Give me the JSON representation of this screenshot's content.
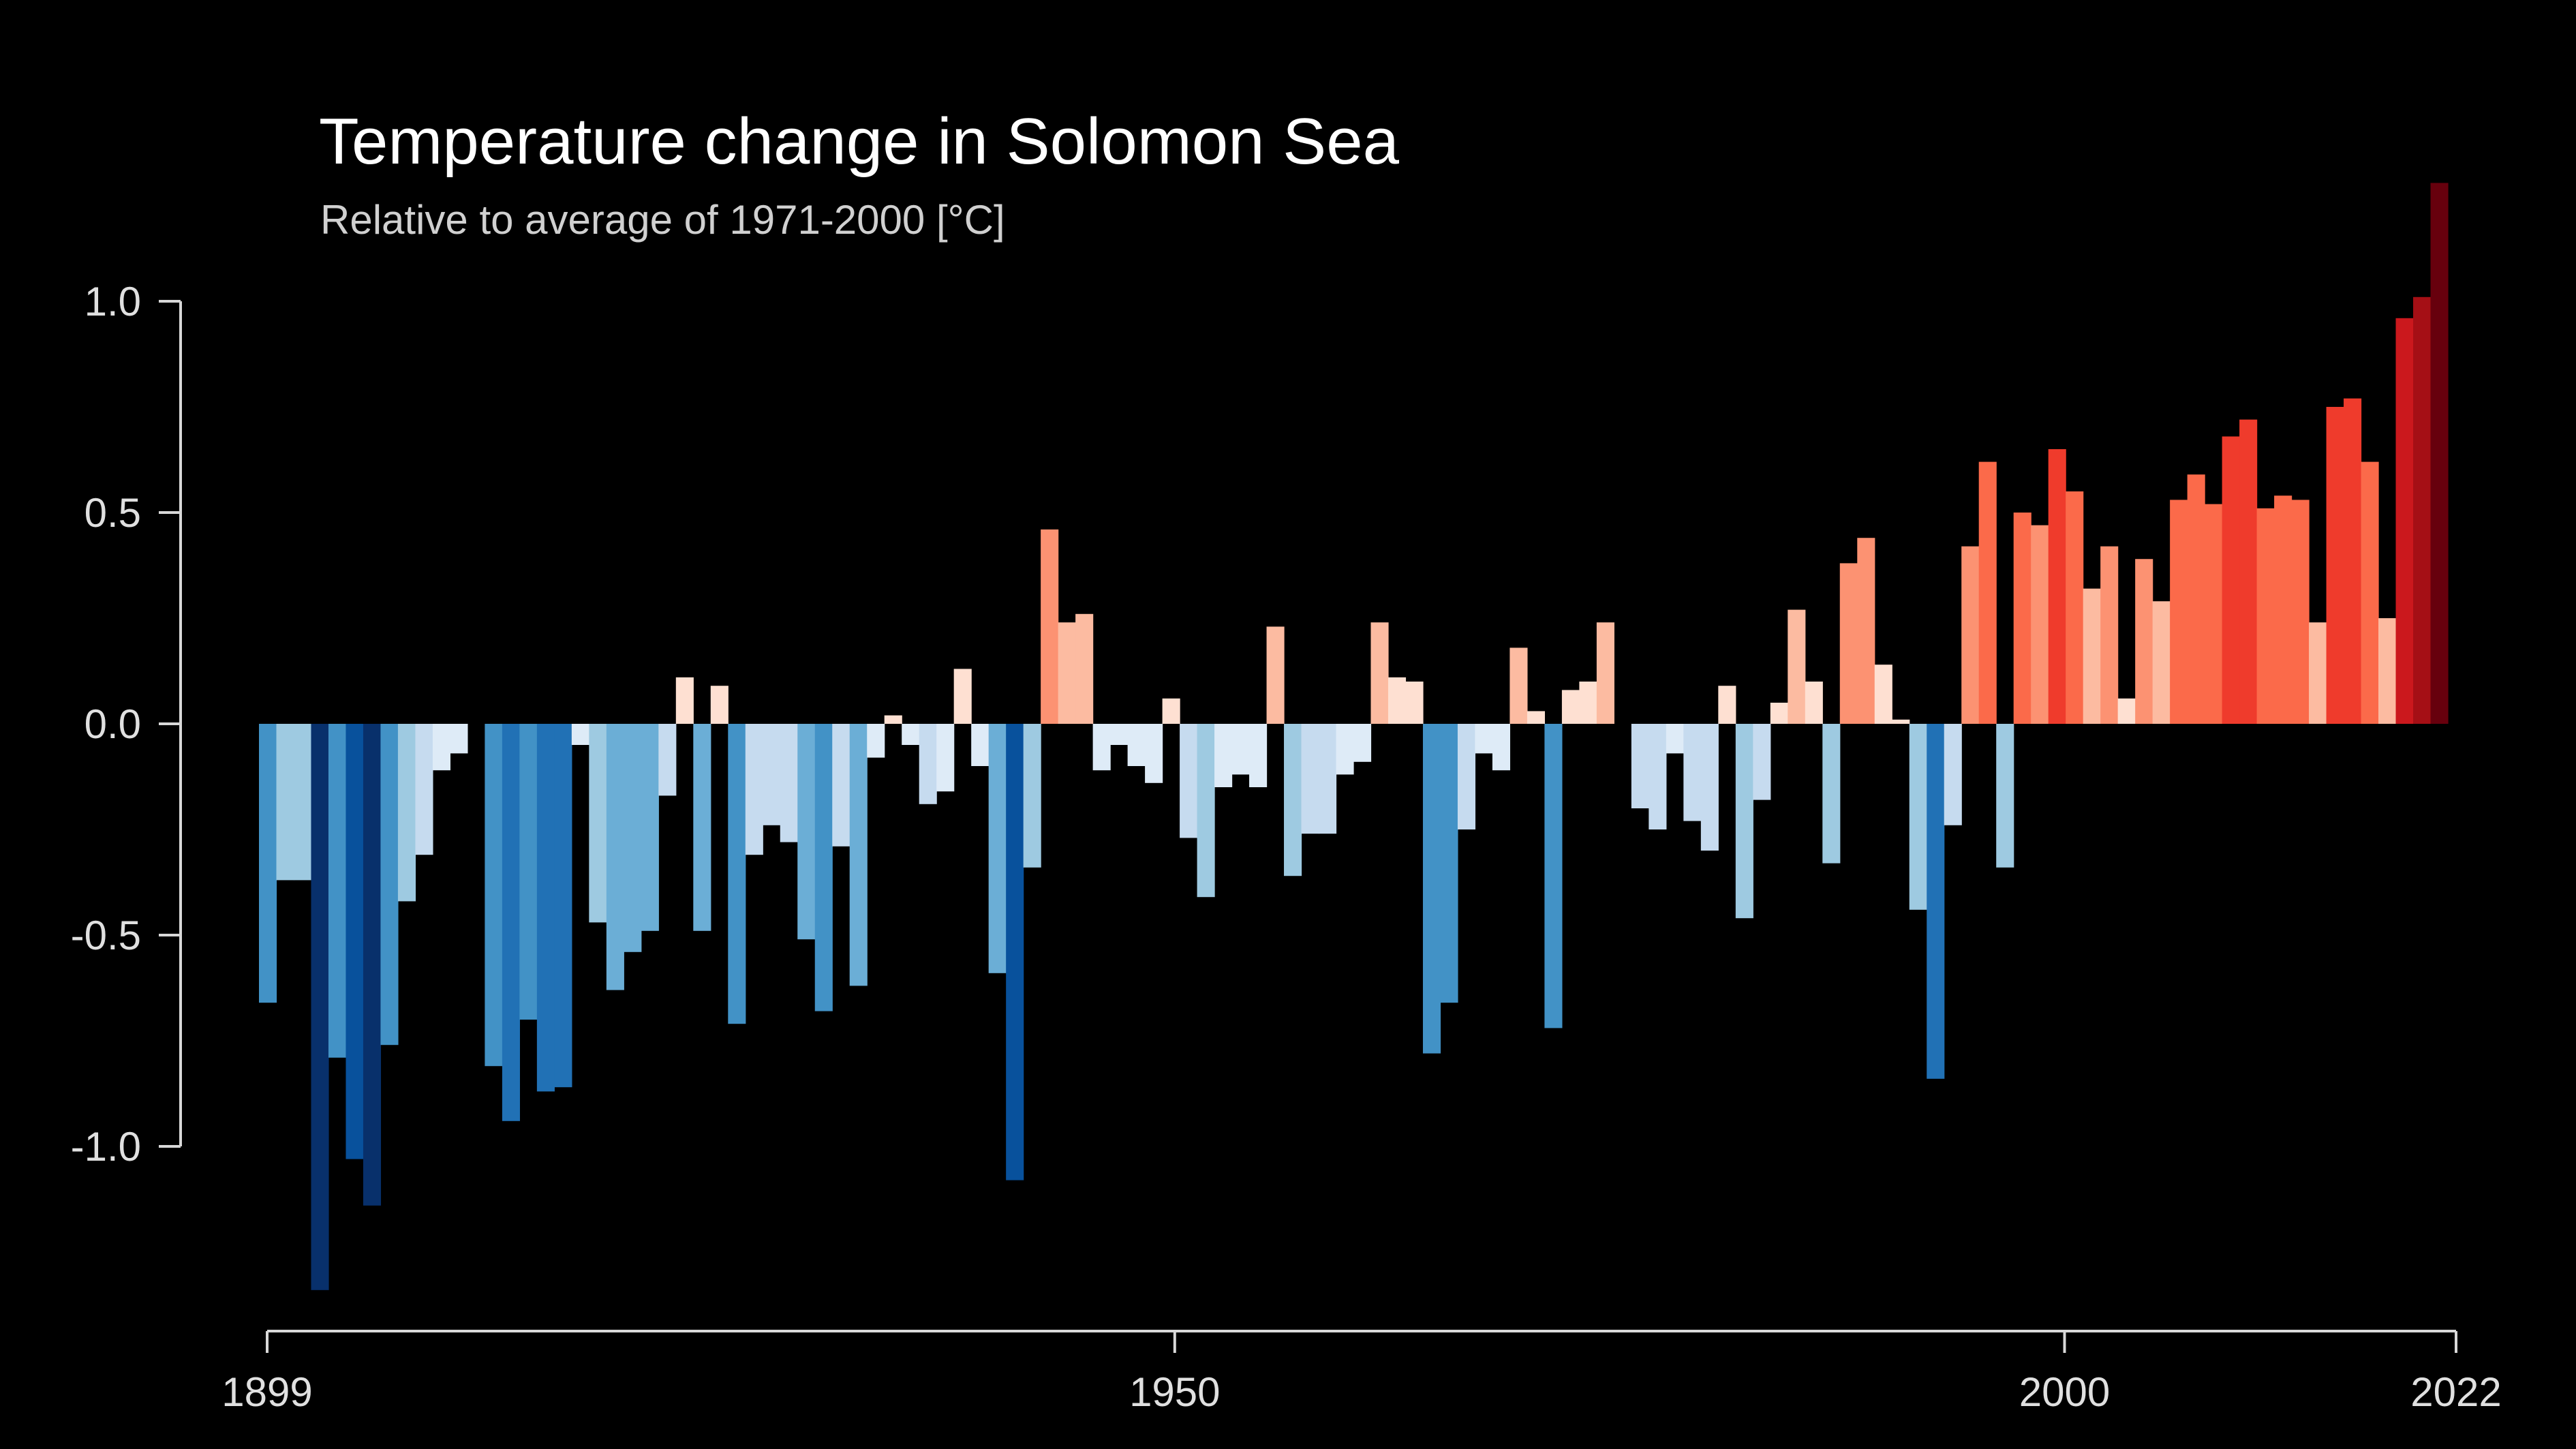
{
  "chart_data": {
    "type": "bar",
    "title": "Temperature change in Solomon Sea",
    "subtitle": "Relative to average of 1971-2000  [°C]",
    "xlabel": "",
    "ylabel": "",
    "x_start": 1899,
    "x_end": 2022,
    "xlim": [
      1899,
      2022
    ],
    "ylim": [
      -1.45,
      1.45
    ],
    "x_ticks": [
      1899,
      1950,
      2000,
      2022
    ],
    "y_ticks": [
      1.0,
      0.5,
      0.0,
      -0.5,
      -1.0
    ],
    "y_tick_labels": [
      "1.0",
      "0.5",
      "0.0",
      "-0.5",
      "-1.0"
    ],
    "x_tick_labels": [
      "1899",
      "1950",
      "2000",
      "2022"
    ],
    "grid": false,
    "legend": "none",
    "color_scale": {
      "negative": [
        "#deebf7",
        "#c6dbef",
        "#9ecae1",
        "#6baed6",
        "#4292c6",
        "#2171b5",
        "#08519c",
        "#08306b"
      ],
      "positive": [
        "#fee0d2",
        "#fcbba1",
        "#fc9272",
        "#fb6a4a",
        "#ef3b2c",
        "#cb181d",
        "#a50f15",
        "#67000d"
      ],
      "range": 1.3
    },
    "values": [
      -0.66,
      -0.37,
      -0.37,
      -1.34,
      -0.79,
      -1.03,
      -1.14,
      -0.76,
      -0.42,
      -0.31,
      -0.11,
      -0.07,
      0.0,
      -0.81,
      -0.94,
      -0.7,
      -0.87,
      -0.86,
      -0.05,
      -0.47,
      -0.63,
      -0.54,
      -0.49,
      -0.17,
      0.11,
      -0.49,
      0.09,
      -0.71,
      -0.31,
      -0.24,
      -0.28,
      -0.51,
      -0.68,
      -0.29,
      -0.62,
      -0.08,
      0.02,
      -0.05,
      -0.19,
      -0.16,
      0.13,
      -0.1,
      -0.59,
      -1.08,
      -0.34,
      0.46,
      0.24,
      0.26,
      -0.11,
      -0.05,
      -0.1,
      -0.14,
      0.06,
      -0.27,
      -0.41,
      -0.15,
      -0.12,
      -0.15,
      0.23,
      -0.36,
      -0.26,
      -0.26,
      -0.12,
      -0.09,
      0.24,
      0.11,
      0.1,
      -0.78,
      -0.66,
      -0.25,
      -0.07,
      -0.11,
      0.18,
      0.03,
      -0.72,
      0.08,
      0.1,
      0.24,
      0.0,
      -0.2,
      -0.25,
      -0.07,
      -0.23,
      -0.3,
      0.09,
      -0.46,
      -0.18,
      0.05,
      0.27,
      0.1,
      -0.33,
      0.38,
      0.44,
      0.14,
      0.01,
      -0.44,
      -0.84,
      -0.24,
      0.42,
      0.62,
      -0.34,
      0.5,
      0.47,
      0.65,
      0.55,
      0.32,
      0.42,
      0.06,
      0.39,
      0.29,
      0.53,
      0.59,
      0.52,
      0.68,
      0.72,
      0.51,
      0.54,
      0.53,
      0.24,
      0.75,
      0.77,
      0.62,
      0.25,
      0.96,
      1.01,
      1.28
    ]
  }
}
